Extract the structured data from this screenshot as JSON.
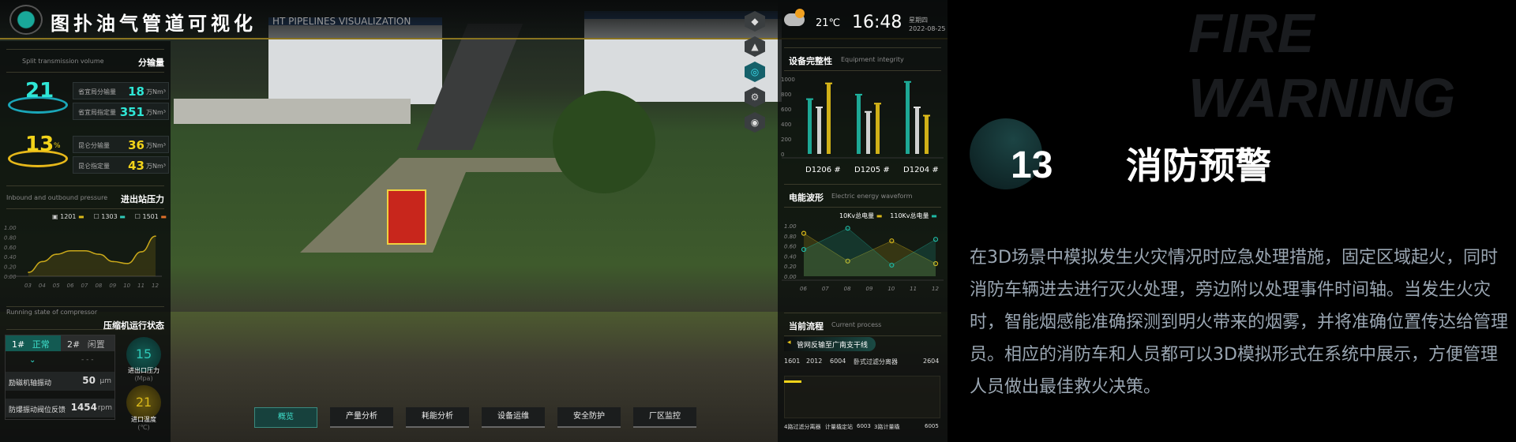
{
  "header": {
    "title": "图扑油气管道可视化",
    "subtitle": "HT PIPELINES VISUALIZATION",
    "logo_icon": "pipeline-logo"
  },
  "weather": {
    "icon": "partly-cloudy-icon",
    "temperature": "21℃",
    "time": "16:48",
    "weekday": "星期四",
    "date": "2022-08-25"
  },
  "left": {
    "split": {
      "en": "Split transmission volume",
      "cn": "分输量",
      "gauges": [
        {
          "value": "21",
          "unit": "",
          "color": "#2fe6d6"
        },
        {
          "value": "13",
          "unit": "%",
          "color": "#f2d31a"
        }
      ],
      "rows": [
        {
          "label": "省宜局分输量",
          "value": "18",
          "unit": "万Nm³",
          "color": "#2fe6d6"
        },
        {
          "label": "省宜局指定量",
          "value": "351",
          "unit": "万Nm³",
          "color": "#2fe6d6"
        },
        {
          "label": "昆仑分输量",
          "value": "36",
          "unit": "万Nm³",
          "color": "#f2d31a"
        },
        {
          "label": "昆仑指定量",
          "value": "43",
          "unit": "万Nm³",
          "color": "#f2d31a"
        }
      ]
    },
    "pressure": {
      "en": "Inbound and outbound pressure",
      "cn": "进出站压力"
    },
    "compressor": {
      "en": "Running state of compressor",
      "cn": "压缩机运行状态",
      "units": [
        {
          "id": "1#",
          "state": "正常"
        },
        {
          "id": "2#",
          "state": "闲置"
        }
      ],
      "unit2_placeholder": "- - -",
      "metrics": [
        {
          "label": "励磁机轴振动",
          "value": "50",
          "unit": "μm"
        },
        {
          "label": "防爆振动阀位反馈",
          "value": "1454",
          "unit": "rpm"
        }
      ],
      "gauges": [
        {
          "value": "15",
          "label": "进出口压力",
          "unit": "(Mpa)",
          "color": "#2fc9b8"
        },
        {
          "value": "21",
          "label": "进口温度",
          "unit": "(℃)",
          "color": "#d9b81a"
        }
      ]
    }
  },
  "right": {
    "integrity": {
      "cn": "设备完整性",
      "en": "Equipment integrity"
    },
    "waveform": {
      "cn": "电能波形",
      "en": "Electric energy waveform"
    },
    "process": {
      "cn": "当前流程",
      "en": "Current process",
      "route": "管网反输至广南支干线",
      "top_labels": [
        "1601",
        "2012",
        "6004",
        "卧式过滤分离器",
        "2604"
      ],
      "bottom_labels": [
        "4路过滤分离器",
        "计量橇定站",
        "6003",
        "3路计量橇",
        "6005"
      ]
    }
  },
  "nav": {
    "items": [
      "概览",
      "产量分析",
      "耗能分析",
      "设备运维",
      "安全防护",
      "厂区监控"
    ],
    "active": 0
  },
  "tool_icons": [
    "box-view-icon",
    "building-icon",
    "target-icon",
    "device-icon",
    "camera-icon"
  ],
  "feature": {
    "number": "13",
    "title": "消防预警",
    "bg_en_1": "FIRE",
    "bg_en_2": "WARNING",
    "description": "在3D场景中模拟发生火灾情况时应急处理措施，固定区域起火，同时消防车辆进去进行灭火处理，旁边附以处理事件时间轴。当发生火灾时，智能烟感能准确探测到明火带来的烟雾，并将准确位置传达给管理员。相应的消防车和人员都可以3D模拟形式在系统中展示，方便管理人员做出最佳救火决策。"
  },
  "chart_data": [
    {
      "type": "area",
      "legend": [
        {
          "name": "1201",
          "color": "#d9b81a",
          "checked": true
        },
        {
          "name": "1303",
          "color": "#2fc9b8",
          "checked": false
        },
        {
          "name": "1501",
          "color": "#e0702a",
          "checked": false
        }
      ],
      "categories": [
        "03",
        "04",
        "05",
        "06",
        "07",
        "08",
        "09",
        "10",
        "11",
        "12"
      ],
      "series": [
        {
          "name": "1201",
          "values": [
            0.08,
            0.3,
            0.45,
            0.52,
            0.52,
            0.45,
            0.3,
            0.26,
            0.5,
            0.82
          ]
        }
      ],
      "ylim": [
        0,
        1
      ],
      "yticks": [
        "0.00",
        "0.20",
        "0.40",
        "0.60",
        "0.80",
        "1.00"
      ]
    },
    {
      "type": "bar",
      "categories": [
        "D1206 #",
        "D1205 #",
        "D1204 #"
      ],
      "series": [
        {
          "color": "#1fb8a4",
          "values": [
            720,
            780,
            950
          ]
        },
        {
          "color": "#e6e6e6",
          "values": [
            610,
            550,
            610
          ]
        },
        {
          "color": "#e6c21a",
          "values": [
            930,
            660,
            500
          ]
        }
      ],
      "ylim": [
        0,
        1000
      ],
      "yticks": [
        "0",
        "200",
        "400",
        "600",
        "800",
        "1000"
      ]
    },
    {
      "type": "area",
      "categories": [
        "06",
        "07",
        "08",
        "09",
        "10",
        "11",
        "12"
      ],
      "series": [
        {
          "name": "10Kv总电量",
          "color": "#d9b81a",
          "x": [
            "06",
            "08",
            "10",
            "12"
          ],
          "values": [
            0.85,
            0.3,
            0.7,
            0.25
          ]
        },
        {
          "name": "110Kv总电量",
          "color": "#1fb8a4",
          "x": [
            "06",
            "08",
            "10",
            "12"
          ],
          "values": [
            0.53,
            0.95,
            0.22,
            0.73
          ]
        }
      ],
      "ylim": [
        0,
        1
      ],
      "yticks": [
        "0.00",
        "0.20",
        "0.40",
        "0.60",
        "0.80",
        "1.00"
      ]
    }
  ]
}
